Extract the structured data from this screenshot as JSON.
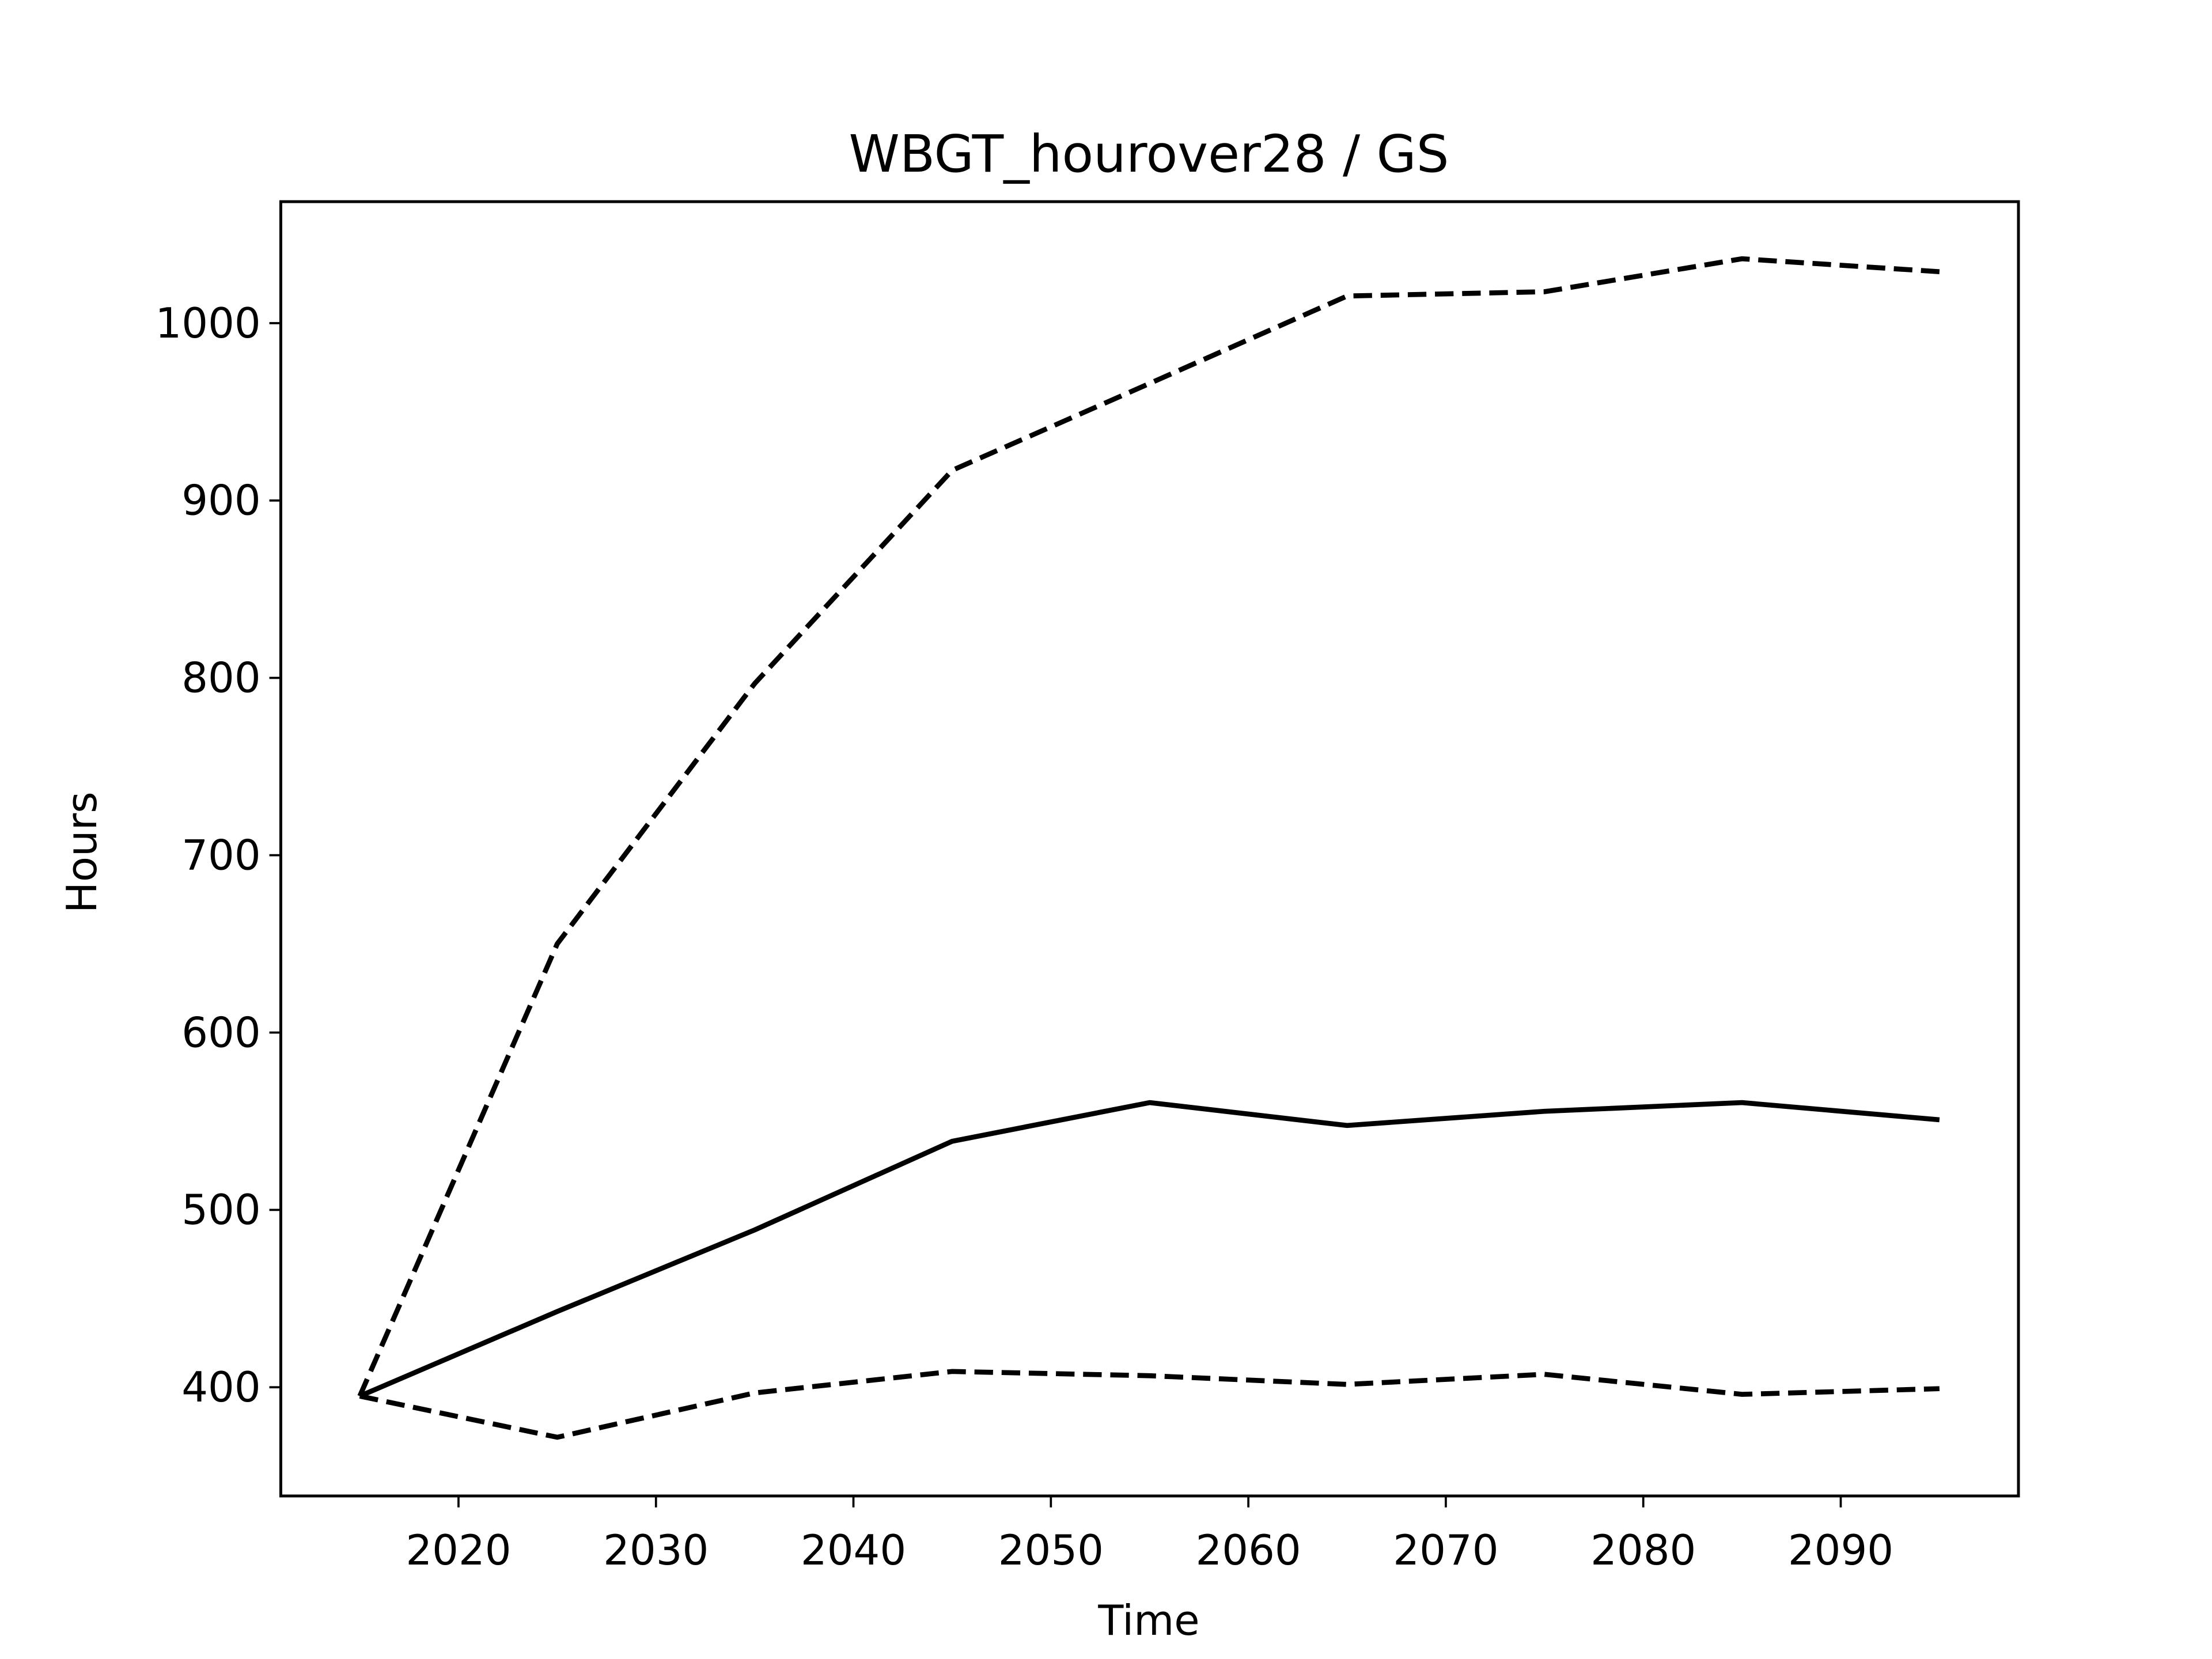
{
  "chart_data": {
    "type": "line",
    "title": "WBGT_hourover28 / GS",
    "xlabel": "Time",
    "ylabel": "Hours",
    "x": [
      2015,
      2025,
      2035,
      2045,
      2055,
      2065,
      2075,
      2085,
      2095
    ],
    "series": [
      {
        "color": "#000000",
        "linestyle": "solid",
        "values": [
          395,
          442.7,
          488.7,
          538.7,
          560.5,
          547.6,
          555.6,
          560.5,
          550.8
        ]
      },
      {
        "color": "#000000",
        "linestyle": "dashed",
        "values": [
          395,
          650,
          796.8,
          917,
          966,
          1015.3,
          1017.7,
          1036.3,
          1029
        ]
      },
      {
        "color": "#000000",
        "linestyle": "dashed",
        "values": [
          395,
          371.8,
          396.8,
          408.9,
          406.5,
          401.6,
          407.3,
          396,
          399.2
        ]
      }
    ],
    "xlim": [
      2011,
      2099
    ],
    "xticks": [
      2020,
      2030,
      2040,
      2050,
      2060,
      2070,
      2080,
      2090
    ],
    "ylim": [
      338.7,
      1068.5
    ],
    "yticks": [
      400,
      500,
      600,
      700,
      800,
      900,
      1000
    ],
    "grid": false
  }
}
